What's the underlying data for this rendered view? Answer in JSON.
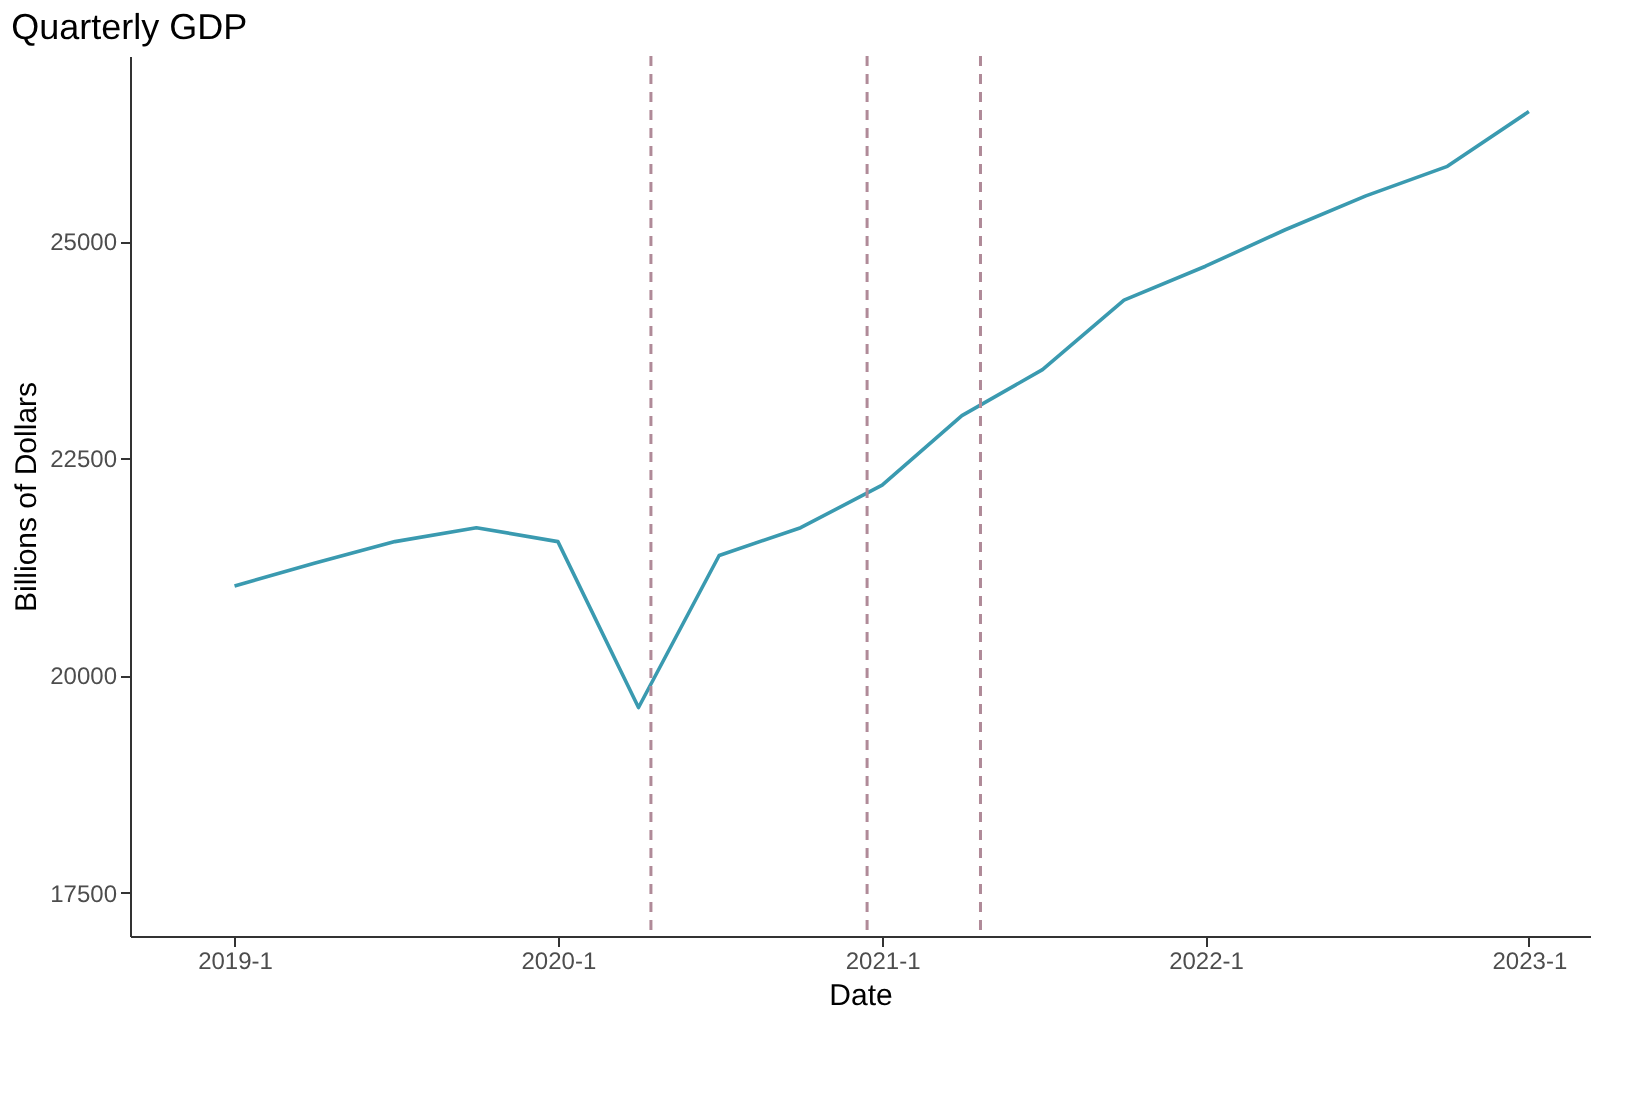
{
  "chart_data": {
    "type": "line",
    "title": "Quarterly GDP",
    "xlabel": "Date",
    "ylabel": "Billions of Dollars",
    "x": [
      "2019-01-01",
      "2019-04-01",
      "2019-07-01",
      "2019-10-01",
      "2020-01-01",
      "2020-04-01",
      "2020-07-01",
      "2020-10-01",
      "2021-01-01",
      "2021-04-01",
      "2021-07-01",
      "2021-10-01",
      "2022-01-01",
      "2022-04-01",
      "2022-07-01",
      "2022-10-01",
      "2023-01-01"
    ],
    "series": [
      {
        "color": "#3a9ab0",
        "values": [
          21030,
          21290,
          21540,
          21700,
          21540,
          19630,
          21380,
          21700,
          22190,
          22990,
          23520,
          24320,
          24710,
          25130,
          25520,
          25860,
          26490
        ]
      }
    ],
    "xlim": [
      "2018-09-05",
      "2023-03-11"
    ],
    "xticks": [
      {
        "value": "2019-01-01",
        "label": "2019-1"
      },
      {
        "value": "2020-01-01",
        "label": "2020-1"
      },
      {
        "value": "2021-01-01",
        "label": "2021-1"
      },
      {
        "value": "2022-01-01",
        "label": "2022-1"
      },
      {
        "value": "2023-01-01",
        "label": "2023-1"
      }
    ],
    "ylim": [
      17000,
      27130
    ],
    "yticks": [
      17500,
      20000,
      22500,
      25000
    ],
    "ref_lines": [
      {
        "axis": "x",
        "value": "2020-04-15",
        "color": "#b08a98",
        "line_style": "dashed"
      },
      {
        "axis": "x",
        "value": "2020-12-15",
        "color": "#b08a98",
        "line_style": "dashed"
      },
      {
        "axis": "x",
        "value": "2021-04-22",
        "color": "#b08a98",
        "line_style": "dashed"
      }
    ],
    "grid": false,
    "marker": "none",
    "line_style": "solid"
  }
}
